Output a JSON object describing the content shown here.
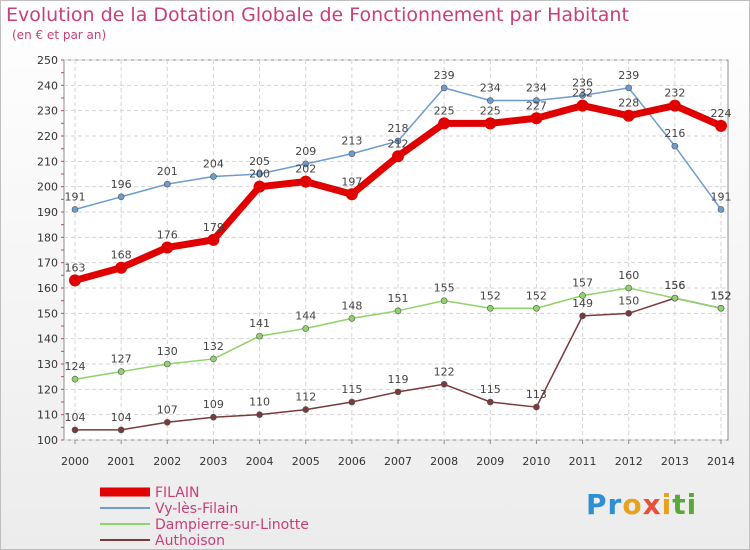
{
  "header": {
    "title": "Evolution de la Dotation Globale de Fonctionnement par Habitant",
    "subtitle": "(en € et par an)"
  },
  "logo": {
    "text": "Proxiti",
    "colors": [
      "#2f8fd6",
      "#e6a21c",
      "#e8503a",
      "#5aa83a"
    ]
  },
  "chart_data": {
    "type": "line",
    "title": "Evolution de la Dotation Globale de Fonctionnement par Habitant",
    "subtitle": "(en € et par an)",
    "xlabel": "",
    "ylabel": "",
    "x": [
      "2000",
      "2001",
      "2002",
      "2003",
      "2004",
      "2005",
      "2006",
      "2007",
      "2008",
      "2009",
      "2010",
      "2011",
      "2012",
      "2013",
      "2014"
    ],
    "ylim": [
      100,
      250
    ],
    "yticks": [
      100,
      110,
      120,
      130,
      140,
      150,
      160,
      170,
      180,
      190,
      200,
      210,
      220,
      230,
      240,
      250
    ],
    "grid": true,
    "legend": "bottom-left",
    "series": [
      {
        "name": "FILAIN",
        "color": "#e00000",
        "values": [
          163,
          168,
          176,
          179,
          200,
          202,
          197,
          212,
          225,
          225,
          227,
          232,
          228,
          232,
          224
        ]
      },
      {
        "name": "Vy-lès-Filain",
        "color": "#6d9ccf",
        "values": [
          191,
          196,
          201,
          204,
          205,
          209,
          213,
          218,
          239,
          234,
          234,
          236,
          239,
          216,
          191
        ]
      },
      {
        "name": "Dampierre-sur-Linotte",
        "color": "#8fd46a",
        "values": [
          124,
          127,
          130,
          132,
          141,
          144,
          148,
          151,
          155,
          152,
          152,
          157,
          160,
          156,
          152
        ]
      },
      {
        "name": "Authoison",
        "color": "#7a3a3a",
        "values": [
          104,
          104,
          107,
          109,
          110,
          112,
          115,
          119,
          122,
          115,
          113,
          149,
          150,
          156,
          152
        ]
      }
    ]
  }
}
